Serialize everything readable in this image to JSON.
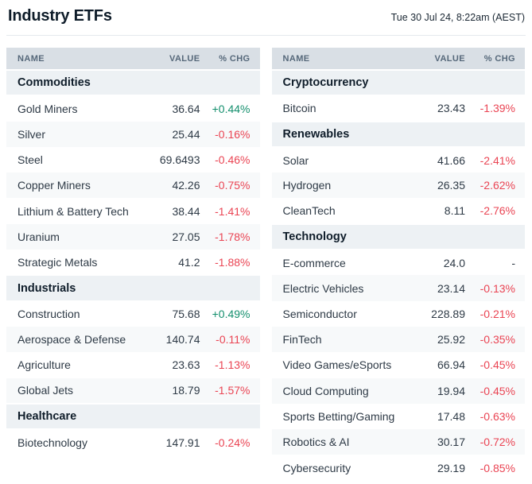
{
  "page": {
    "title": "Industry ETFs",
    "timestamp": "Tue 30 Jul 24, 8:22am (AEST)"
  },
  "columns": {
    "name": "NAME",
    "value": "VALUE",
    "chg": "% CHG"
  },
  "colors": {
    "positive": "#148f6d",
    "negative": "#ea4453",
    "table_header_bg": "#d9dfe5",
    "section_header_bg": "#edf1f4",
    "alt_row_bg": "#f7f9fa"
  },
  "tables": {
    "left": {
      "sections": [
        {
          "title": "Commodities",
          "rows": [
            {
              "name": "Gold Miners",
              "value": "36.64",
              "chg": "+0.44%",
              "dir": "up"
            },
            {
              "name": "Silver",
              "value": "25.44",
              "chg": "-0.16%",
              "dir": "down"
            },
            {
              "name": "Steel",
              "value": "69.6493",
              "chg": "-0.46%",
              "dir": "down"
            },
            {
              "name": "Copper Miners",
              "value": "42.26",
              "chg": "-0.75%",
              "dir": "down"
            },
            {
              "name": "Lithium & Battery Tech",
              "value": "38.44",
              "chg": "-1.41%",
              "dir": "down"
            },
            {
              "name": "Uranium",
              "value": "27.05",
              "chg": "-1.78%",
              "dir": "down"
            },
            {
              "name": "Strategic Metals",
              "value": "41.2",
              "chg": "-1.88%",
              "dir": "down"
            }
          ]
        },
        {
          "title": "Industrials",
          "rows": [
            {
              "name": "Construction",
              "value": "75.68",
              "chg": "+0.49%",
              "dir": "up"
            },
            {
              "name": "Aerospace & Defense",
              "value": "140.74",
              "chg": "-0.11%",
              "dir": "down"
            },
            {
              "name": "Agriculture",
              "value": "23.63",
              "chg": "-1.13%",
              "dir": "down"
            },
            {
              "name": "Global Jets",
              "value": "18.79",
              "chg": "-1.57%",
              "dir": "down"
            }
          ]
        },
        {
          "title": "Healthcare",
          "rows": [
            {
              "name": "Biotechnology",
              "value": "147.91",
              "chg": "-0.24%",
              "dir": "down"
            }
          ]
        }
      ]
    },
    "right": {
      "sections": [
        {
          "title": "Cryptocurrency",
          "rows": [
            {
              "name": "Bitcoin",
              "value": "23.43",
              "chg": "-1.39%",
              "dir": "down"
            }
          ]
        },
        {
          "title": "Renewables",
          "rows": [
            {
              "name": "Solar",
              "value": "41.66",
              "chg": "-2.41%",
              "dir": "down"
            },
            {
              "name": "Hydrogen",
              "value": "26.35",
              "chg": "-2.62%",
              "dir": "down"
            },
            {
              "name": "CleanTech",
              "value": "8.11",
              "chg": "-2.76%",
              "dir": "down"
            }
          ]
        },
        {
          "title": "Technology",
          "rows": [
            {
              "name": "E-commerce",
              "value": "24.0",
              "chg": "-",
              "dir": "flat"
            },
            {
              "name": "Electric Vehicles",
              "value": "23.14",
              "chg": "-0.13%",
              "dir": "down"
            },
            {
              "name": "Semiconductor",
              "value": "228.89",
              "chg": "-0.21%",
              "dir": "down"
            },
            {
              "name": "FinTech",
              "value": "25.92",
              "chg": "-0.35%",
              "dir": "down"
            },
            {
              "name": "Video Games/eSports",
              "value": "66.94",
              "chg": "-0.45%",
              "dir": "down"
            },
            {
              "name": "Cloud Computing",
              "value": "19.94",
              "chg": "-0.45%",
              "dir": "down"
            },
            {
              "name": "Sports Betting/Gaming",
              "value": "17.48",
              "chg": "-0.63%",
              "dir": "down"
            },
            {
              "name": "Robotics & AI",
              "value": "30.17",
              "chg": "-0.72%",
              "dir": "down"
            },
            {
              "name": "Cybersecurity",
              "value": "29.19",
              "chg": "-0.85%",
              "dir": "down"
            }
          ]
        }
      ]
    }
  }
}
